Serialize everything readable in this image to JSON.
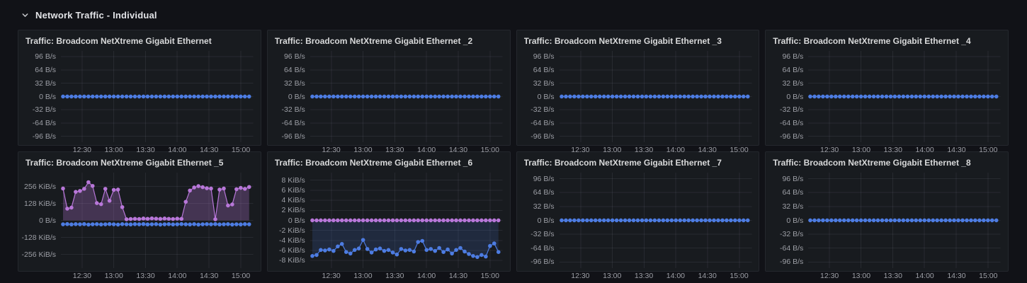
{
  "row_header": {
    "title": "Network Traffic - Individual",
    "collapse_icon": "chevron-down-icon"
  },
  "colors": {
    "page_background": "#111217",
    "panel_background": "#181b1f",
    "series_blue": "#4d7ce2",
    "series_purple": "#b877d9",
    "axis_text": "#9d9fa6"
  },
  "chart_data": [
    {
      "type": "line",
      "title": "Traffic: Broadcom NetXtreme Gigabit Ethernet",
      "unit": "B/s",
      "xlim": [
        730,
        912
      ],
      "x_start_min": 732,
      "x_step_min": 4,
      "xticks": [
        {
          "label": "12:30",
          "t": 750
        },
        {
          "label": "13:00",
          "t": 780
        },
        {
          "label": "13:30",
          "t": 810
        },
        {
          "label": "14:00",
          "t": 840
        },
        {
          "label": "14:30",
          "t": 870
        },
        {
          "label": "15:00",
          "t": 900
        }
      ],
      "ylim": [
        -110,
        110
      ],
      "yticks": [
        {
          "label": "96 B/s",
          "v": 96
        },
        {
          "label": "64 B/s",
          "v": 64
        },
        {
          "label": "32 B/s",
          "v": 32
        },
        {
          "label": "0 B/s",
          "v": 0
        },
        {
          "label": "-32 B/s",
          "v": -32
        },
        {
          "label": "-64 B/s",
          "v": -64
        },
        {
          "label": "-96 B/s",
          "v": -96
        }
      ],
      "series": [
        {
          "name": "blue-series",
          "color": "#4d7ce2",
          "fill_opacity": 0,
          "values": [
            0,
            0,
            0,
            0,
            0,
            0,
            0,
            0,
            0,
            0,
            0,
            0,
            0,
            0,
            0,
            0,
            0,
            0,
            0,
            0,
            0,
            0,
            0,
            0,
            0,
            0,
            0,
            0,
            0,
            0,
            0,
            0,
            0,
            0,
            0,
            0,
            0,
            0,
            0,
            0,
            0,
            0,
            0,
            0,
            0
          ]
        }
      ]
    },
    {
      "type": "line",
      "title": "Traffic: Broadcom NetXtreme Gigabit Ethernet _2",
      "unit": "B/s",
      "xlim": [
        730,
        912
      ],
      "x_start_min": 732,
      "x_step_min": 4,
      "xticks": [
        {
          "label": "12:30",
          "t": 750
        },
        {
          "label": "13:00",
          "t": 780
        },
        {
          "label": "13:30",
          "t": 810
        },
        {
          "label": "14:00",
          "t": 840
        },
        {
          "label": "14:30",
          "t": 870
        },
        {
          "label": "15:00",
          "t": 900
        }
      ],
      "ylim": [
        -110,
        110
      ],
      "yticks": [
        {
          "label": "96 B/s",
          "v": 96
        },
        {
          "label": "64 B/s",
          "v": 64
        },
        {
          "label": "32 B/s",
          "v": 32
        },
        {
          "label": "0 B/s",
          "v": 0
        },
        {
          "label": "-32 B/s",
          "v": -32
        },
        {
          "label": "-64 B/s",
          "v": -64
        },
        {
          "label": "-96 B/s",
          "v": -96
        }
      ],
      "series": [
        {
          "name": "blue-series",
          "color": "#4d7ce2",
          "fill_opacity": 0,
          "values": [
            0,
            0,
            0,
            0,
            0,
            0,
            0,
            0,
            0,
            0,
            0,
            0,
            0,
            0,
            0,
            0,
            0,
            0,
            0,
            0,
            0,
            0,
            0,
            0,
            0,
            0,
            0,
            0,
            0,
            0,
            0,
            0,
            0,
            0,
            0,
            0,
            0,
            0,
            0,
            0,
            0,
            0,
            0,
            0,
            0
          ]
        }
      ]
    },
    {
      "type": "line",
      "title": "Traffic: Broadcom NetXtreme Gigabit Ethernet _3",
      "unit": "B/s",
      "xlim": [
        730,
        912
      ],
      "x_start_min": 732,
      "x_step_min": 4,
      "xticks": [
        {
          "label": "12:30",
          "t": 750
        },
        {
          "label": "13:00",
          "t": 780
        },
        {
          "label": "13:30",
          "t": 810
        },
        {
          "label": "14:00",
          "t": 840
        },
        {
          "label": "14:30",
          "t": 870
        },
        {
          "label": "15:00",
          "t": 900
        }
      ],
      "ylim": [
        -110,
        110
      ],
      "yticks": [
        {
          "label": "96 B/s",
          "v": 96
        },
        {
          "label": "64 B/s",
          "v": 64
        },
        {
          "label": "32 B/s",
          "v": 32
        },
        {
          "label": "0 B/s",
          "v": 0
        },
        {
          "label": "-32 B/s",
          "v": -32
        },
        {
          "label": "-64 B/s",
          "v": -64
        },
        {
          "label": "-96 B/s",
          "v": -96
        }
      ],
      "series": [
        {
          "name": "blue-series",
          "color": "#4d7ce2",
          "fill_opacity": 0,
          "values": [
            0,
            0,
            0,
            0,
            0,
            0,
            0,
            0,
            0,
            0,
            0,
            0,
            0,
            0,
            0,
            0,
            0,
            0,
            0,
            0,
            0,
            0,
            0,
            0,
            0,
            0,
            0,
            0,
            0,
            0,
            0,
            0,
            0,
            0,
            0,
            0,
            0,
            0,
            0,
            0,
            0,
            0,
            0,
            0,
            0
          ]
        }
      ]
    },
    {
      "type": "line",
      "title": "Traffic: Broadcom NetXtreme Gigabit Ethernet _4",
      "unit": "B/s",
      "xlim": [
        730,
        912
      ],
      "x_start_min": 732,
      "x_step_min": 4,
      "xticks": [
        {
          "label": "12:30",
          "t": 750
        },
        {
          "label": "13:00",
          "t": 780
        },
        {
          "label": "13:30",
          "t": 810
        },
        {
          "label": "14:00",
          "t": 840
        },
        {
          "label": "14:30",
          "t": 870
        },
        {
          "label": "15:00",
          "t": 900
        }
      ],
      "ylim": [
        -110,
        110
      ],
      "yticks": [
        {
          "label": "96 B/s",
          "v": 96
        },
        {
          "label": "64 B/s",
          "v": 64
        },
        {
          "label": "32 B/s",
          "v": 32
        },
        {
          "label": "0 B/s",
          "v": 0
        },
        {
          "label": "-32 B/s",
          "v": -32
        },
        {
          "label": "-64 B/s",
          "v": -64
        },
        {
          "label": "-96 B/s",
          "v": -96
        }
      ],
      "series": [
        {
          "name": "blue-series",
          "color": "#4d7ce2",
          "fill_opacity": 0,
          "values": [
            0,
            0,
            0,
            0,
            0,
            0,
            0,
            0,
            0,
            0,
            0,
            0,
            0,
            0,
            0,
            0,
            0,
            0,
            0,
            0,
            0,
            0,
            0,
            0,
            0,
            0,
            0,
            0,
            0,
            0,
            0,
            0,
            0,
            0,
            0,
            0,
            0,
            0,
            0,
            0,
            0,
            0,
            0,
            0,
            0
          ]
        }
      ]
    },
    {
      "type": "line",
      "title": "Traffic: Broadcom NetXtreme Gigabit Ethernet _5",
      "unit": "KiB/s",
      "xlim": [
        730,
        912
      ],
      "x_start_min": 732,
      "x_step_min": 4,
      "xticks": [
        {
          "label": "12:30",
          "t": 750
        },
        {
          "label": "13:00",
          "t": 780
        },
        {
          "label": "13:30",
          "t": 810
        },
        {
          "label": "14:00",
          "t": 840
        },
        {
          "label": "14:30",
          "t": 870
        },
        {
          "label": "15:00",
          "t": 900
        }
      ],
      "ylim": [
        -360,
        360
      ],
      "yticks": [
        {
          "label": "256 KiB/s",
          "v": 256
        },
        {
          "label": "128 KiB/s",
          "v": 128
        },
        {
          "label": "0 B/s",
          "v": 0
        },
        {
          "label": "-128 KiB/s",
          "v": -128
        },
        {
          "label": "-256 KiB/s",
          "v": -256
        }
      ],
      "series": [
        {
          "name": "purple-series",
          "color": "#b877d9",
          "fill_opacity": 0.28,
          "values": [
            240,
            88,
            96,
            215,
            222,
            238,
            288,
            260,
            130,
            122,
            238,
            148,
            230,
            232,
            100,
            8,
            10,
            12,
            10,
            14,
            12,
            15,
            13,
            11,
            14,
            12,
            10,
            13,
            11,
            140,
            225,
            248,
            258,
            250,
            242,
            240,
            8,
            232,
            240,
            112,
            120,
            235,
            245,
            238,
            252
          ]
        },
        {
          "name": "blue-series",
          "color": "#4d7ce2",
          "fill_opacity": 0,
          "values": [
            -30,
            -28,
            -31,
            -29,
            -30,
            -28,
            -32,
            -30,
            -29,
            -31,
            -30,
            -28,
            -30,
            -32,
            -29,
            -30,
            -31,
            -29,
            -30,
            -28,
            -31,
            -30,
            -29,
            -32,
            -30,
            -29,
            -31,
            -30,
            -28,
            -30,
            -31,
            -29,
            -32,
            -30,
            -29,
            -30,
            -28,
            -31,
            -30,
            -29,
            -32,
            -30,
            -31,
            -29,
            -30
          ]
        }
      ]
    },
    {
      "type": "line",
      "title": "Traffic: Broadcom NetXtreme Gigabit Ethernet _6",
      "unit": "KiB/s",
      "xlim": [
        730,
        912
      ],
      "x_start_min": 732,
      "x_step_min": 4,
      "xticks": [
        {
          "label": "12:30",
          "t": 750
        },
        {
          "label": "13:00",
          "t": 780
        },
        {
          "label": "13:30",
          "t": 810
        },
        {
          "label": "14:00",
          "t": 840
        },
        {
          "label": "14:30",
          "t": 870
        },
        {
          "label": "15:00",
          "t": 900
        }
      ],
      "ylim": [
        -9.5,
        9.5
      ],
      "yticks": [
        {
          "label": "8 KiB/s",
          "v": 8
        },
        {
          "label": "6 KiB/s",
          "v": 6
        },
        {
          "label": "4 KiB/s",
          "v": 4
        },
        {
          "label": "2 KiB/s",
          "v": 2
        },
        {
          "label": "0 B/s",
          "v": 0
        },
        {
          "label": "-2 KiB/s",
          "v": -2
        },
        {
          "label": "-4 KiB/s",
          "v": -4
        },
        {
          "label": "-6 KiB/s",
          "v": -6
        },
        {
          "label": "-8 KiB/s",
          "v": -8
        }
      ],
      "series": [
        {
          "name": "blue-series",
          "color": "#4d7ce2",
          "fill_opacity": 0.16,
          "values": [
            -7.1,
            -6.9,
            -5.9,
            -6.0,
            -5.8,
            -6.1,
            -5.2,
            -4.7,
            -6.3,
            -6.6,
            -5.9,
            -5.6,
            -3.9,
            -5.7,
            -6.4,
            -5.8,
            -5.6,
            -6.1,
            -5.9,
            -6.4,
            -6.8,
            -5.7,
            -6.0,
            -5.9,
            -6.2,
            -4.3,
            -4.1,
            -5.9,
            -5.7,
            -6.1,
            -5.5,
            -6.3,
            -5.8,
            -6.6,
            -5.9,
            -5.5,
            -6.2,
            -6.7,
            -7.1,
            -7.3,
            -6.9,
            -7.2,
            -5.1,
            -4.6,
            -6.3
          ]
        },
        {
          "name": "purple-series",
          "color": "#b877d9",
          "fill_opacity": 0,
          "values": [
            0,
            0,
            0,
            0,
            0,
            0,
            0,
            0,
            0,
            0,
            0,
            0,
            0,
            0,
            0,
            0,
            0,
            0,
            0,
            0,
            0,
            0,
            0,
            0,
            0,
            0,
            0,
            0,
            0,
            0,
            0,
            0,
            0,
            0,
            0,
            0,
            0,
            0,
            0,
            0,
            0,
            0,
            0,
            0,
            0
          ]
        }
      ]
    },
    {
      "type": "line",
      "title": "Traffic: Broadcom NetXtreme Gigabit Ethernet _7",
      "unit": "B/s",
      "xlim": [
        730,
        912
      ],
      "x_start_min": 732,
      "x_step_min": 4,
      "xticks": [
        {
          "label": "12:30",
          "t": 750
        },
        {
          "label": "13:00",
          "t": 780
        },
        {
          "label": "13:30",
          "t": 810
        },
        {
          "label": "14:00",
          "t": 840
        },
        {
          "label": "14:30",
          "t": 870
        },
        {
          "label": "15:00",
          "t": 900
        }
      ],
      "ylim": [
        -110,
        110
      ],
      "yticks": [
        {
          "label": "96 B/s",
          "v": 96
        },
        {
          "label": "64 B/s",
          "v": 64
        },
        {
          "label": "32 B/s",
          "v": 32
        },
        {
          "label": "0 B/s",
          "v": 0
        },
        {
          "label": "-32 B/s",
          "v": -32
        },
        {
          "label": "-64 B/s",
          "v": -64
        },
        {
          "label": "-96 B/s",
          "v": -96
        }
      ],
      "series": [
        {
          "name": "blue-series",
          "color": "#4d7ce2",
          "fill_opacity": 0,
          "values": [
            0,
            0,
            0,
            0,
            0,
            0,
            0,
            0,
            0,
            0,
            0,
            0,
            0,
            0,
            0,
            0,
            0,
            0,
            0,
            0,
            0,
            0,
            0,
            0,
            0,
            0,
            0,
            0,
            0,
            0,
            0,
            0,
            0,
            0,
            0,
            0,
            0,
            0,
            0,
            0,
            0,
            0,
            0,
            0,
            0
          ]
        }
      ]
    },
    {
      "type": "line",
      "title": "Traffic: Broadcom NetXtreme Gigabit Ethernet _8",
      "unit": "B/s",
      "xlim": [
        730,
        912
      ],
      "x_start_min": 732,
      "x_step_min": 4,
      "xticks": [
        {
          "label": "12:30",
          "t": 750
        },
        {
          "label": "13:00",
          "t": 780
        },
        {
          "label": "13:30",
          "t": 810
        },
        {
          "label": "14:00",
          "t": 840
        },
        {
          "label": "14:30",
          "t": 870
        },
        {
          "label": "15:00",
          "t": 900
        }
      ],
      "ylim": [
        -110,
        110
      ],
      "yticks": [
        {
          "label": "96 B/s",
          "v": 96
        },
        {
          "label": "64 B/s",
          "v": 64
        },
        {
          "label": "32 B/s",
          "v": 32
        },
        {
          "label": "0 B/s",
          "v": 0
        },
        {
          "label": "-32 B/s",
          "v": -32
        },
        {
          "label": "-64 B/s",
          "v": -64
        },
        {
          "label": "-96 B/s",
          "v": -96
        }
      ],
      "series": [
        {
          "name": "blue-series",
          "color": "#4d7ce2",
          "fill_opacity": 0,
          "values": [
            0,
            0,
            0,
            0,
            0,
            0,
            0,
            0,
            0,
            0,
            0,
            0,
            0,
            0,
            0,
            0,
            0,
            0,
            0,
            0,
            0,
            0,
            0,
            0,
            0,
            0,
            0,
            0,
            0,
            0,
            0,
            0,
            0,
            0,
            0,
            0,
            0,
            0,
            0,
            0,
            0,
            0,
            0,
            0,
            0
          ]
        }
      ]
    }
  ]
}
